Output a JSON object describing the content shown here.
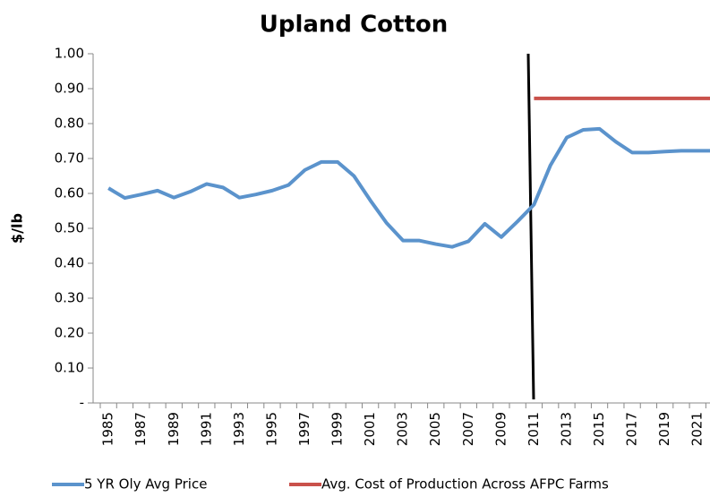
{
  "chart_data": {
    "type": "line",
    "title": "Upland Cotton",
    "y_label": "$/lb",
    "categories": [
      "1985",
      null,
      "1987",
      null,
      "1989",
      null,
      "1991",
      null,
      "1993",
      null,
      "1995",
      null,
      "1997",
      null,
      "1999",
      null,
      "2001",
      null,
      "2003",
      null,
      "2005",
      null,
      "2007",
      null,
      "2009",
      null,
      "2011",
      null,
      "2013",
      null,
      "2015",
      null,
      "2017",
      null,
      "2019",
      null,
      "2021",
      null
    ],
    "series": [
      {
        "name": "5 YR Oly Avg Price",
        "color": "#5b93cc",
        "values": [
          0.615,
          0.587,
          0.597,
          0.608,
          0.588,
          0.605,
          0.627,
          0.617,
          0.588,
          0.597,
          0.608,
          0.624,
          0.667,
          0.69,
          0.69,
          0.65,
          0.58,
          0.515,
          0.465,
          0.465,
          0.455,
          0.447,
          0.463,
          0.513,
          0.475,
          0.52,
          0.568,
          0.68,
          0.76,
          0.782,
          0.785,
          0.748,
          0.717,
          0.717,
          0.72,
          0.722,
          0.722,
          0.722
        ]
      },
      {
        "name": "Avg. Cost of Production Across AFPC Farms",
        "color": "#c9514b",
        "values": [
          null,
          null,
          null,
          null,
          null,
          null,
          null,
          null,
          null,
          null,
          null,
          null,
          null,
          null,
          null,
          null,
          null,
          null,
          null,
          null,
          null,
          null,
          null,
          null,
          null,
          null,
          0.872,
          0.872,
          0.872,
          0.872,
          0.872,
          0.872,
          0.872,
          0.872,
          0.872,
          0.872,
          0.872,
          0.872
        ]
      }
    ],
    "ylim": [
      0,
      1
    ],
    "yticks": [
      {
        "value": 0,
        "label": "-"
      },
      {
        "value": 0.1,
        "label": "0.10"
      },
      {
        "value": 0.2,
        "label": "0.20"
      },
      {
        "value": 0.3,
        "label": "0.30"
      },
      {
        "value": 0.4,
        "label": "0.40"
      },
      {
        "value": 0.5,
        "label": "0.50"
      },
      {
        "value": 0.6,
        "label": "0.60"
      },
      {
        "value": 0.7,
        "label": "0.70"
      },
      {
        "value": 0.8,
        "label": "0.80"
      },
      {
        "value": 0.9,
        "label": "0.90"
      },
      {
        "value": 1,
        "label": "1.00"
      }
    ],
    "legend": "bottom"
  }
}
